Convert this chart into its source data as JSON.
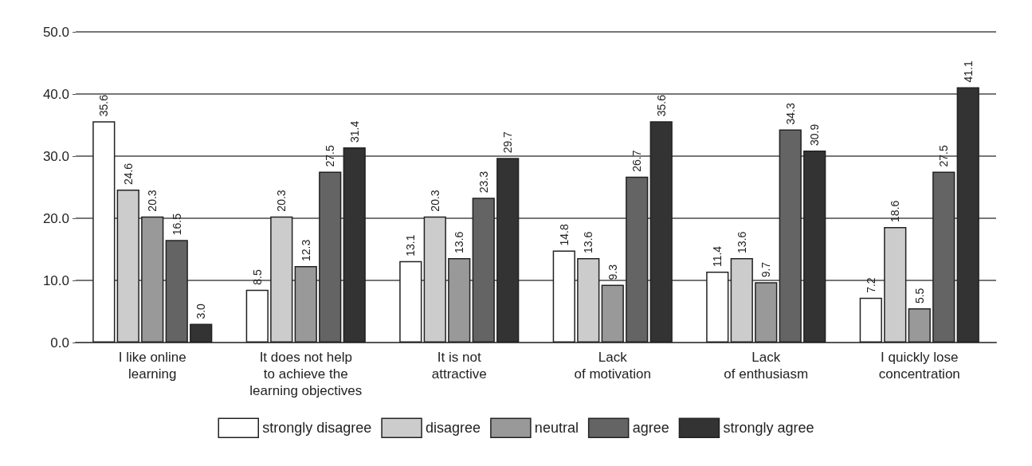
{
  "chart_data": {
    "type": "bar",
    "categories": [
      "I like online\nlearning",
      "It does not help\nto achieve the\nlearning objectives",
      "It is not\nattractive",
      "Lack\nof motivation",
      "Lack\nof enthusiasm",
      "I quickly lose\nconcentration"
    ],
    "series": [
      {
        "name": "strongly disagree",
        "color": "#ffffff",
        "values": [
          35.6,
          8.5,
          13.1,
          14.8,
          11.4,
          7.2
        ],
        "value_labels": [
          "35.6",
          "8.5",
          "13.1",
          "14.8",
          "11.4",
          "7.2"
        ]
      },
      {
        "name": "disagree",
        "color": "#cccccc",
        "values": [
          24.6,
          20.3,
          20.3,
          13.6,
          13.6,
          18.6
        ],
        "value_labels": [
          "24.6",
          "20.3",
          "20.3",
          "13.6",
          "13.6",
          "18.6"
        ]
      },
      {
        "name": "neutral",
        "color": "#999999",
        "values": [
          20.3,
          12.3,
          13.6,
          9.3,
          9.7,
          5.5
        ],
        "value_labels": [
          "20.3",
          "12.3",
          "13.6",
          "9.3",
          "9.7",
          "5.5"
        ]
      },
      {
        "name": "agree",
        "color": "#646464",
        "values": [
          16.5,
          27.5,
          23.3,
          26.7,
          34.3,
          27.5
        ],
        "value_labels": [
          "16.5",
          "27.5",
          "23.3",
          "26.7",
          "34.3",
          "27.5"
        ]
      },
      {
        "name": "strongly agree",
        "color": "#333333",
        "values": [
          3.0,
          31.4,
          29.7,
          35.6,
          30.9,
          41.1
        ],
        "value_labels": [
          "3.0",
          "31.4",
          "29.7",
          "35.6",
          "30.9",
          "41.1"
        ]
      }
    ],
    "ylim": [
      0,
      50
    ],
    "yticks": [
      {
        "value": 0,
        "label": "0.0"
      },
      {
        "value": 10,
        "label": "10.0"
      },
      {
        "value": 20,
        "label": "20.0"
      },
      {
        "value": 30,
        "label": "30.0"
      },
      {
        "value": 40,
        "label": "40.0"
      },
      {
        "value": 50,
        "label": "50.0"
      }
    ],
    "grid": "y",
    "legend": "bottom"
  }
}
